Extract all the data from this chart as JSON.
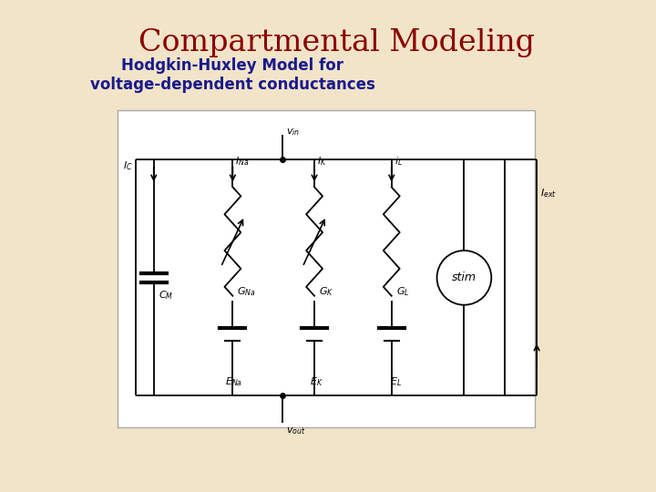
{
  "title": "Compartmental Modeling",
  "subtitle": "Hodgkin-Huxley Model for\nvoltage-dependent conductances",
  "title_color": "#8B0000",
  "subtitle_color": "#1a1a8c",
  "bg_color": "#F2E4C8",
  "diagram_bg": "#FFFFFF",
  "line_color": "#000000",
  "title_fontsize": 24,
  "subtitle_fontsize": 12
}
